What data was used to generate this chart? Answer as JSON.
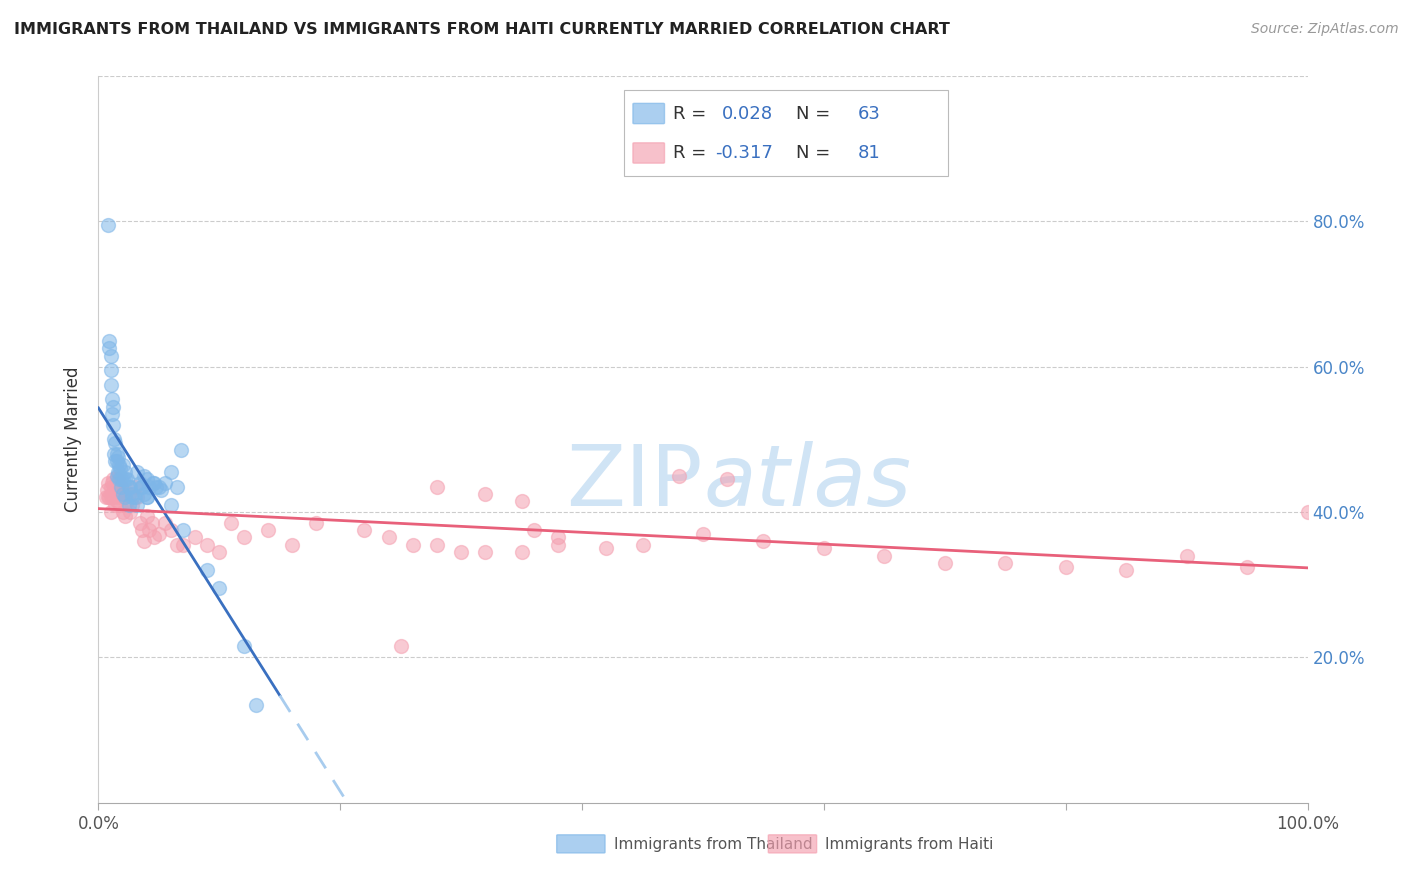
{
  "title": "IMMIGRANTS FROM THAILAND VS IMMIGRANTS FROM HAITI CURRENTLY MARRIED CORRELATION CHART",
  "source": "Source: ZipAtlas.com",
  "ylabel": "Currently Married",
  "legend_label1": "Immigrants from Thailand",
  "legend_label2": "Immigrants from Haiti",
  "R1": "0.028",
  "N1": "63",
  "R2": "-0.317",
  "N2": "81",
  "thailand_color": "#7EB6E8",
  "haiti_color": "#F4A0B0",
  "trendline1_solid_color": "#3a70c0",
  "trendline1_dash_color": "#a8ccee",
  "trendline2_color": "#E8607A",
  "watermark_color": "#d0e4f5",
  "background_color": "#ffffff",
  "grid_color": "#cccccc",
  "right_tick_color": "#4a86c8",
  "thailand_x": [
    0.008,
    0.009,
    0.009,
    0.01,
    0.01,
    0.01,
    0.011,
    0.011,
    0.012,
    0.012,
    0.013,
    0.013,
    0.014,
    0.014,
    0.015,
    0.015,
    0.016,
    0.016,
    0.017,
    0.017,
    0.018,
    0.019,
    0.019,
    0.02,
    0.02,
    0.022,
    0.022,
    0.025,
    0.025,
    0.028,
    0.03,
    0.032,
    0.035,
    0.038,
    0.04,
    0.04,
    0.045,
    0.05,
    0.055,
    0.06,
    0.065,
    0.07,
    0.09,
    0.1,
    0.12,
    0.13,
    0.015,
    0.02,
    0.022,
    0.024,
    0.026,
    0.028,
    0.032,
    0.034,
    0.036,
    0.038,
    0.04,
    0.042,
    0.046,
    0.048,
    0.052,
    0.06,
    0.068
  ],
  "thailand_y": [
    0.795,
    0.635,
    0.625,
    0.615,
    0.595,
    0.575,
    0.555,
    0.535,
    0.545,
    0.52,
    0.5,
    0.48,
    0.495,
    0.47,
    0.47,
    0.45,
    0.475,
    0.455,
    0.465,
    0.445,
    0.46,
    0.445,
    0.435,
    0.445,
    0.425,
    0.445,
    0.42,
    0.435,
    0.41,
    0.425,
    0.42,
    0.41,
    0.435,
    0.45,
    0.445,
    0.42,
    0.44,
    0.435,
    0.44,
    0.455,
    0.435,
    0.375,
    0.32,
    0.295,
    0.215,
    0.135,
    0.48,
    0.465,
    0.455,
    0.445,
    0.435,
    0.42,
    0.455,
    0.44,
    0.435,
    0.425,
    0.42,
    0.435,
    0.44,
    0.435,
    0.43,
    0.41,
    0.485
  ],
  "haiti_x": [
    0.006,
    0.007,
    0.008,
    0.008,
    0.009,
    0.01,
    0.01,
    0.01,
    0.011,
    0.012,
    0.012,
    0.013,
    0.014,
    0.014,
    0.015,
    0.015,
    0.016,
    0.016,
    0.017,
    0.018,
    0.018,
    0.019,
    0.02,
    0.02,
    0.022,
    0.022,
    0.024,
    0.025,
    0.026,
    0.028,
    0.03,
    0.032,
    0.034,
    0.036,
    0.038,
    0.04,
    0.042,
    0.044,
    0.046,
    0.05,
    0.055,
    0.06,
    0.065,
    0.07,
    0.08,
    0.09,
    0.1,
    0.11,
    0.12,
    0.14,
    0.16,
    0.18,
    0.22,
    0.24,
    0.26,
    0.28,
    0.3,
    0.32,
    0.35,
    0.38,
    0.42,
    0.45,
    0.5,
    0.55,
    0.6,
    0.65,
    0.7,
    0.75,
    0.8,
    0.85,
    0.9,
    0.95,
    1.0,
    0.48,
    0.52,
    0.25,
    0.28,
    0.32,
    0.35,
    0.36,
    0.38
  ],
  "haiti_y": [
    0.42,
    0.43,
    0.44,
    0.42,
    0.42,
    0.435,
    0.42,
    0.4,
    0.44,
    0.445,
    0.42,
    0.435,
    0.435,
    0.41,
    0.445,
    0.415,
    0.45,
    0.42,
    0.435,
    0.44,
    0.41,
    0.435,
    0.42,
    0.4,
    0.425,
    0.395,
    0.415,
    0.425,
    0.4,
    0.41,
    0.435,
    0.42,
    0.385,
    0.375,
    0.36,
    0.395,
    0.375,
    0.385,
    0.365,
    0.37,
    0.385,
    0.375,
    0.355,
    0.355,
    0.365,
    0.355,
    0.345,
    0.385,
    0.365,
    0.375,
    0.355,
    0.385,
    0.375,
    0.365,
    0.355,
    0.355,
    0.345,
    0.345,
    0.345,
    0.355,
    0.35,
    0.355,
    0.37,
    0.36,
    0.35,
    0.34,
    0.33,
    0.33,
    0.325,
    0.32,
    0.34,
    0.325,
    0.4,
    0.45,
    0.445,
    0.215,
    0.435,
    0.425,
    0.415,
    0.375,
    0.365
  ],
  "xlim": [
    0.0,
    1.0
  ],
  "ylim": [
    0.0,
    1.0
  ],
  "trendline1_xstart": 0.0,
  "trendline1_solid_end": 0.15,
  "trendline1_dash_end": 0.53,
  "trendline2_xstart": 0.0,
  "trendline2_xend": 1.0
}
